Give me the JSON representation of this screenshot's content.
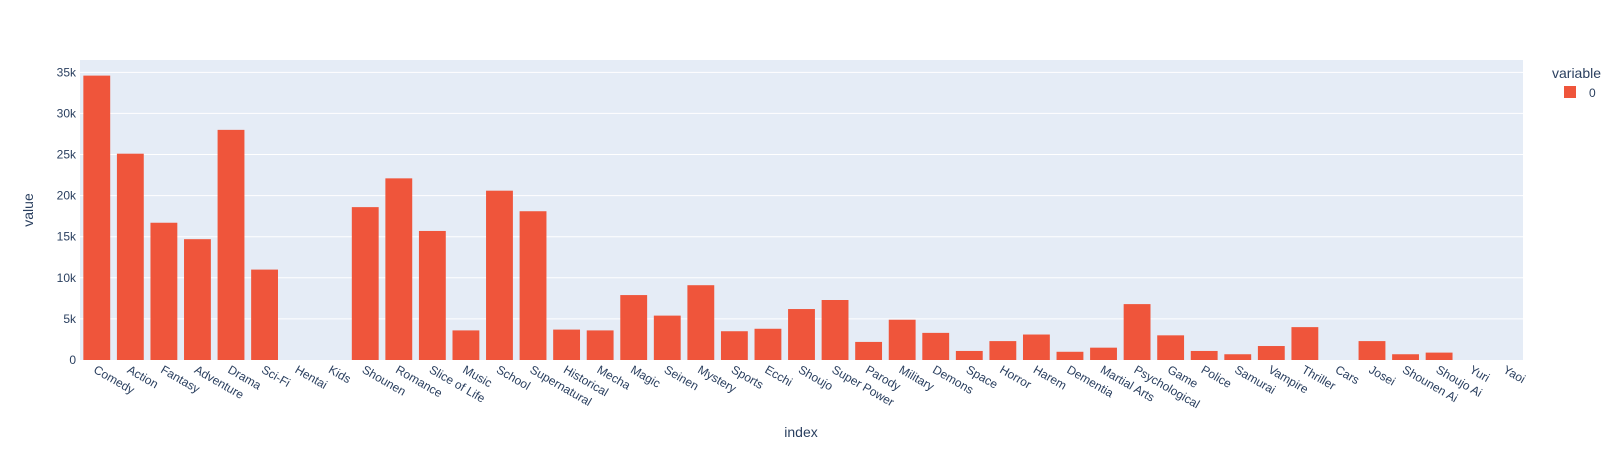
{
  "colors": {
    "plot_bg": "#E5ECF6",
    "grid": "#ffffff",
    "bar": "#EF553B",
    "text": "#2a3f5f"
  },
  "chart_data": {
    "type": "bar",
    "title": "",
    "xlabel": "index",
    "ylabel": "value",
    "ylim": [
      0,
      36500
    ],
    "y_ticks": [
      0,
      5000,
      10000,
      15000,
      20000,
      25000,
      30000,
      35000
    ],
    "y_tick_labels": [
      "0",
      "5k",
      "10k",
      "15k",
      "20k",
      "25k",
      "30k",
      "35k"
    ],
    "grid": true,
    "legend": {
      "title": "variable",
      "position": "top-right"
    },
    "categories": [
      "Comedy",
      "Action",
      "Fantasy",
      "Adventure",
      "Drama",
      "Sci-Fi",
      "Hentai",
      "Kids",
      "Shounen",
      "Romance",
      "Slice of Life",
      "Music",
      "School",
      "Supernatural",
      "Historical",
      "Mecha",
      "Magic",
      "Seinen",
      "Mystery",
      "Sports",
      "Ecchi",
      "Shoujo",
      "Super Power",
      "Parody",
      "Military",
      "Demons",
      "Space",
      "Horror",
      "Harem",
      "Dementia",
      "Martial Arts",
      "Psychological",
      "Game",
      "Police",
      "Samurai",
      "Vampire",
      "Thriller",
      "Cars",
      "Josei",
      "Shounen Ai",
      "Shoujo Ai",
      "Yuri",
      "Yaoi"
    ],
    "series": [
      {
        "name": "0",
        "values": [
          34600,
          25100,
          16700,
          14700,
          28000,
          11000,
          0,
          0,
          18600,
          22100,
          15700,
          3600,
          20600,
          18100,
          3700,
          3600,
          7900,
          5400,
          9100,
          3500,
          3800,
          6200,
          7300,
          2200,
          4900,
          3300,
          1100,
          2300,
          3100,
          1000,
          1500,
          6800,
          3000,
          1100,
          700,
          1700,
          4000,
          0,
          2300,
          700,
          900,
          0,
          0
        ]
      }
    ]
  }
}
